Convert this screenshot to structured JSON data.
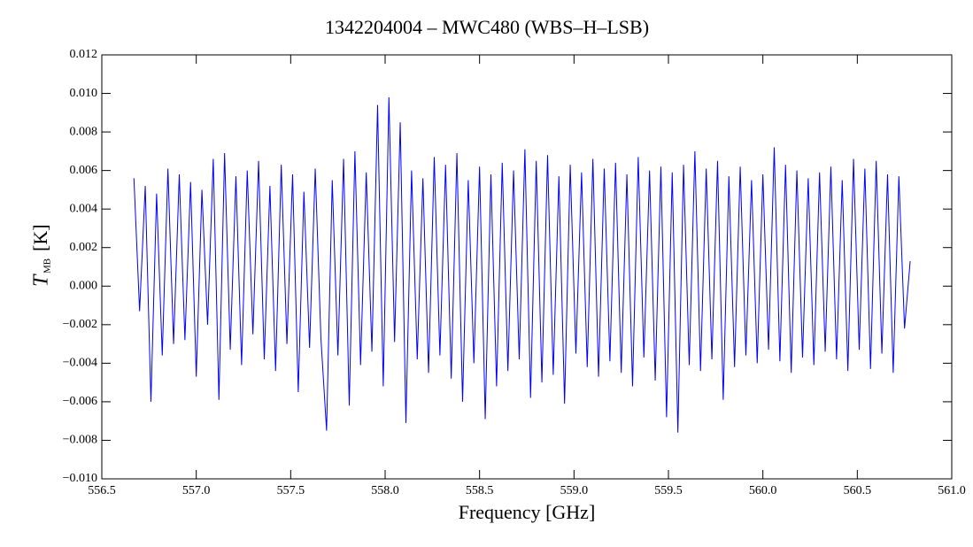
{
  "chart_data": {
    "type": "line",
    "title": "1342204004 – MWC480 (WBS–H–LSB)",
    "x_label": "Frequency [GHz]",
    "y_label": {
      "symbol": "T",
      "subscript": "MB",
      "unit": "[K]"
    },
    "xlim": [
      556.5,
      561.0
    ],
    "ylim": [
      -0.01,
      0.012
    ],
    "xticks": [
      {
        "value": 556.5,
        "label": "556.5"
      },
      {
        "value": 557.0,
        "label": "557.0"
      },
      {
        "value": 557.5,
        "label": "557.5"
      },
      {
        "value": 558.0,
        "label": "558.0"
      },
      {
        "value": 558.5,
        "label": "558.5"
      },
      {
        "value": 559.0,
        "label": "559.0"
      },
      {
        "value": 559.5,
        "label": "559.5"
      },
      {
        "value": 560.0,
        "label": "560.0"
      },
      {
        "value": 560.5,
        "label": "560.5"
      },
      {
        "value": 561.0,
        "label": "561.0"
      }
    ],
    "yticks": [
      {
        "value": -0.01,
        "label": "−0.010"
      },
      {
        "value": -0.008,
        "label": "−0.008"
      },
      {
        "value": -0.006,
        "label": "−0.006"
      },
      {
        "value": -0.004,
        "label": "−0.004"
      },
      {
        "value": -0.002,
        "label": "−0.002"
      },
      {
        "value": 0.0,
        "label": "0.000"
      },
      {
        "value": 0.002,
        "label": "0.002"
      },
      {
        "value": 0.004,
        "label": "0.004"
      },
      {
        "value": 0.006,
        "label": "0.006"
      },
      {
        "value": 0.008,
        "label": "0.008"
      },
      {
        "value": 0.01,
        "label": "0.010"
      },
      {
        "value": 0.012,
        "label": "0.012"
      }
    ],
    "grid": false,
    "series": [
      {
        "color": "#0000ff",
        "x": [
          556.67,
          556.7,
          556.73,
          556.76,
          556.79,
          556.82,
          556.85,
          556.88,
          556.91,
          556.94,
          556.97,
          557.0,
          557.03,
          557.06,
          557.09,
          557.12,
          557.15,
          557.18,
          557.21,
          557.24,
          557.27,
          557.3,
          557.33,
          557.36,
          557.39,
          557.42,
          557.45,
          557.48,
          557.51,
          557.54,
          557.57,
          557.6,
          557.63,
          557.66,
          557.69,
          557.72,
          557.75,
          557.78,
          557.81,
          557.84,
          557.87,
          557.9,
          557.93,
          557.96,
          557.99,
          558.02,
          558.05,
          558.08,
          558.11,
          558.14,
          558.17,
          558.2,
          558.23,
          558.26,
          558.29,
          558.32,
          558.35,
          558.38,
          558.41,
          558.44,
          558.47,
          558.5,
          558.53,
          558.56,
          558.59,
          558.62,
          558.65,
          558.68,
          558.71,
          558.74,
          558.77,
          558.8,
          558.83,
          558.86,
          558.89,
          558.92,
          558.95,
          558.98,
          559.01,
          559.04,
          559.07,
          559.1,
          559.13,
          559.16,
          559.19,
          559.22,
          559.25,
          559.28,
          559.31,
          559.34,
          559.37,
          559.4,
          559.43,
          559.46,
          559.49,
          559.52,
          559.55,
          559.58,
          559.61,
          559.64,
          559.67,
          559.7,
          559.73,
          559.76,
          559.79,
          559.82,
          559.85,
          559.88,
          559.91,
          559.94,
          559.97,
          560.0,
          560.03,
          560.06,
          560.09,
          560.12,
          560.15,
          560.18,
          560.21,
          560.24,
          560.27,
          560.3,
          560.33,
          560.36,
          560.39,
          560.42,
          560.45,
          560.48,
          560.51,
          560.54,
          560.57,
          560.6,
          560.63,
          560.66,
          560.69,
          560.72,
          560.75,
          560.78
        ],
        "values": [
          0.0056,
          -0.0013,
          0.0052,
          -0.006,
          0.0048,
          -0.0036,
          0.0061,
          -0.003,
          0.0058,
          -0.0028,
          0.0054,
          -0.0047,
          0.005,
          -0.002,
          0.0066,
          -0.0059,
          0.0069,
          -0.0033,
          0.0057,
          -0.0041,
          0.006,
          -0.0025,
          0.0065,
          -0.0038,
          0.0052,
          -0.0044,
          0.0063,
          -0.003,
          0.0058,
          -0.0055,
          0.0049,
          -0.0032,
          0.0061,
          -0.0027,
          -0.0075,
          0.0055,
          -0.0036,
          0.0066,
          -0.0062,
          0.007,
          -0.0041,
          0.0059,
          -0.0034,
          0.0094,
          -0.0052,
          0.0098,
          -0.0029,
          0.0085,
          -0.0071,
          0.006,
          -0.0038,
          0.0056,
          -0.0045,
          0.0067,
          -0.0036,
          0.0063,
          -0.0048,
          0.0069,
          -0.006,
          0.0055,
          -0.004,
          0.0062,
          -0.0069,
          0.0058,
          -0.0052,
          0.0064,
          -0.0044,
          0.006,
          -0.0038,
          0.0071,
          -0.0058,
          0.0065,
          -0.005,
          0.0068,
          -0.0046,
          0.0057,
          -0.0061,
          0.0063,
          -0.0035,
          0.0059,
          -0.0042,
          0.0066,
          -0.0047,
          0.0061,
          -0.0039,
          0.0064,
          -0.0045,
          0.0058,
          -0.0052,
          0.0067,
          -0.0037,
          0.006,
          -0.0049,
          0.0062,
          -0.0068,
          0.0059,
          -0.0076,
          0.0063,
          -0.0041,
          0.007,
          -0.0044,
          0.0061,
          -0.0038,
          0.0065,
          -0.0059,
          0.0057,
          -0.0042,
          0.0062,
          -0.0036,
          0.0055,
          -0.004,
          0.0058,
          -0.0033,
          0.0072,
          -0.0039,
          0.0063,
          -0.0045,
          0.006,
          -0.0037,
          0.0056,
          -0.0041,
          0.0059,
          -0.0034,
          0.0062,
          -0.0038,
          0.0055,
          -0.0044,
          0.0066,
          -0.0033,
          0.0061,
          -0.0043,
          0.0065,
          -0.0035,
          0.0058,
          -0.0045,
          0.0057,
          -0.0022,
          0.0013
        ]
      }
    ]
  }
}
